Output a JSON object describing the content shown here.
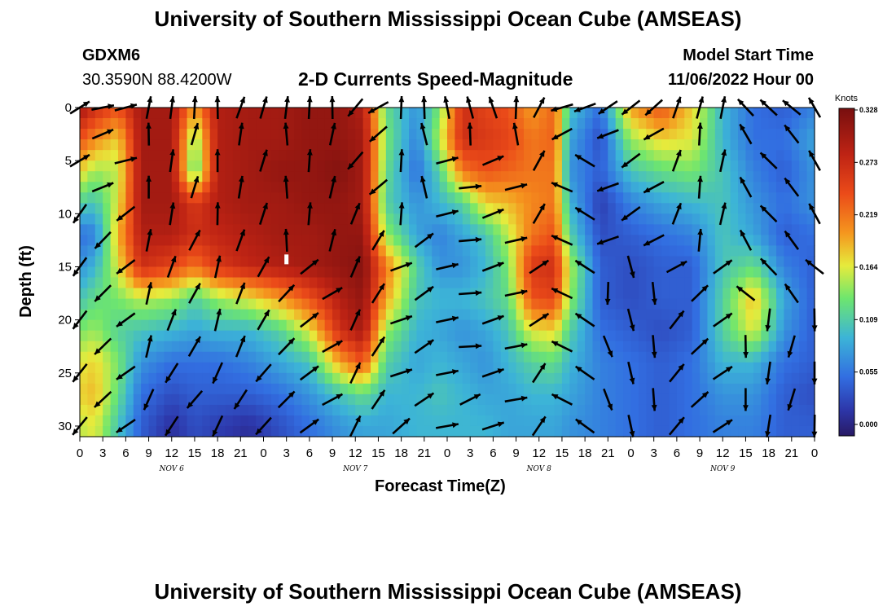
{
  "header": {
    "title": "University of Southern Mississippi Ocean Cube (AMSEAS)",
    "station_id": "GDXM6",
    "station_coords": "30.3590N  88.4200W",
    "subtitle": "2-D Currents Speed-Magnitude",
    "model_start_label": "Model Start Time",
    "model_start_value": "11/06/2022 Hour 00"
  },
  "footer": {
    "title": "University of Southern Mississippi Ocean Cube (AMSEAS)"
  },
  "chart_data": {
    "type": "heatmap",
    "xlabel": "Forecast Time(Z)",
    "ylabel": "Depth (ft)",
    "x_tick_labels": [
      "0",
      "3",
      "6",
      "9",
      "12",
      "15",
      "18",
      "21",
      "0",
      "3",
      "6",
      "9",
      "12",
      "15",
      "18",
      "21",
      "0",
      "3",
      "6",
      "9",
      "12",
      "15",
      "18",
      "21",
      "0",
      "3",
      "6",
      "9",
      "12",
      "15",
      "18",
      "21",
      "0"
    ],
    "x_range_hours": [
      0,
      96
    ],
    "day_labels": [
      {
        "label": "NOV 6",
        "hour": 12
      },
      {
        "label": "NOV 7",
        "hour": 36
      },
      {
        "label": "NOV 8",
        "hour": 60
      },
      {
        "label": "NOV 9",
        "hour": 84
      }
    ],
    "y_tick_labels": [
      "0",
      "5",
      "10",
      "15",
      "20",
      "25",
      "30"
    ],
    "y_ticks": [
      0,
      5,
      10,
      15,
      20,
      25,
      30
    ],
    "y_range": [
      0,
      31
    ],
    "colorbar": {
      "unit": "Knots",
      "tick_labels": [
        "0.328",
        "0.273",
        "0.219",
        "0.164",
        "0.109",
        "0.055",
        "0.000"
      ],
      "range": [
        0,
        0.328
      ]
    },
    "vector_depths": [
      0,
      2.5,
      5,
      7.5,
      10,
      12.5,
      15,
      17.5,
      20,
      22.5,
      25,
      27.5,
      30
    ],
    "speed_grid_hours": [
      0,
      2,
      5,
      8,
      12,
      15,
      18,
      22,
      26,
      30,
      34,
      37,
      40,
      44,
      47,
      50,
      53,
      56,
      59,
      62,
      64,
      68,
      72,
      76,
      80,
      84,
      88,
      92,
      96
    ],
    "speed_grid_depths": [
      0,
      3,
      6,
      9,
      12,
      15,
      18,
      21,
      24,
      27,
      30
    ],
    "speed": [
      [
        0.3,
        0.27,
        0.24,
        0.3,
        0.3,
        0.2,
        0.29,
        0.3,
        0.3,
        0.31,
        0.31,
        0.29,
        0.13,
        0.08,
        0.14,
        0.27,
        0.25,
        0.24,
        0.2,
        0.23,
        0.11,
        0.06,
        0.2,
        0.24,
        0.18,
        0.1,
        0.06,
        0.05,
        0.07
      ],
      [
        0.24,
        0.21,
        0.18,
        0.3,
        0.3,
        0.14,
        0.29,
        0.3,
        0.3,
        0.31,
        0.31,
        0.3,
        0.14,
        0.07,
        0.16,
        0.27,
        0.26,
        0.25,
        0.22,
        0.23,
        0.09,
        0.04,
        0.15,
        0.18,
        0.17,
        0.1,
        0.06,
        0.06,
        0.09
      ],
      [
        0.18,
        0.15,
        0.16,
        0.3,
        0.3,
        0.12,
        0.29,
        0.3,
        0.31,
        0.31,
        0.32,
        0.3,
        0.13,
        0.06,
        0.12,
        0.22,
        0.24,
        0.23,
        0.22,
        0.22,
        0.08,
        0.05,
        0.11,
        0.13,
        0.14,
        0.11,
        0.07,
        0.05,
        0.08
      ],
      [
        0.12,
        0.11,
        0.17,
        0.3,
        0.3,
        0.26,
        0.29,
        0.3,
        0.3,
        0.31,
        0.31,
        0.3,
        0.12,
        0.08,
        0.1,
        0.12,
        0.18,
        0.19,
        0.21,
        0.22,
        0.1,
        0.03,
        0.07,
        0.09,
        0.1,
        0.11,
        0.08,
        0.06,
        0.08
      ],
      [
        0.06,
        0.07,
        0.19,
        0.29,
        0.29,
        0.27,
        0.28,
        0.29,
        0.3,
        0.3,
        0.31,
        0.31,
        0.15,
        0.09,
        0.07,
        0.09,
        0.11,
        0.16,
        0.22,
        0.24,
        0.12,
        0.04,
        0.05,
        0.06,
        0.07,
        0.11,
        0.09,
        0.05,
        0.06
      ],
      [
        0.08,
        0.1,
        0.17,
        0.27,
        0.25,
        0.22,
        0.26,
        0.28,
        0.29,
        0.3,
        0.31,
        0.32,
        0.22,
        0.12,
        0.08,
        0.08,
        0.1,
        0.14,
        0.26,
        0.27,
        0.16,
        0.05,
        0.04,
        0.05,
        0.05,
        0.11,
        0.13,
        0.07,
        0.05
      ],
      [
        0.11,
        0.13,
        0.14,
        0.16,
        0.15,
        0.12,
        0.15,
        0.17,
        0.2,
        0.24,
        0.29,
        0.31,
        0.2,
        0.11,
        0.1,
        0.1,
        0.11,
        0.13,
        0.24,
        0.25,
        0.15,
        0.05,
        0.04,
        0.05,
        0.05,
        0.12,
        0.19,
        0.09,
        0.05
      ],
      [
        0.14,
        0.15,
        0.12,
        0.11,
        0.1,
        0.09,
        0.1,
        0.1,
        0.12,
        0.17,
        0.27,
        0.3,
        0.15,
        0.1,
        0.09,
        0.08,
        0.09,
        0.11,
        0.17,
        0.18,
        0.12,
        0.06,
        0.05,
        0.04,
        0.05,
        0.12,
        0.17,
        0.08,
        0.05
      ],
      [
        0.17,
        0.18,
        0.14,
        0.08,
        0.06,
        0.06,
        0.06,
        0.07,
        0.09,
        0.11,
        0.2,
        0.24,
        0.12,
        0.09,
        0.1,
        0.09,
        0.08,
        0.1,
        0.12,
        0.13,
        0.1,
        0.07,
        0.06,
        0.05,
        0.06,
        0.1,
        0.1,
        0.06,
        0.05
      ],
      [
        0.18,
        0.19,
        0.13,
        0.06,
        0.04,
        0.05,
        0.05,
        0.05,
        0.06,
        0.08,
        0.11,
        0.13,
        0.1,
        0.1,
        0.11,
        0.1,
        0.09,
        0.09,
        0.1,
        0.1,
        0.09,
        0.07,
        0.06,
        0.05,
        0.06,
        0.08,
        0.08,
        0.05,
        0.04
      ],
      [
        0.16,
        0.17,
        0.11,
        0.05,
        0.02,
        0.04,
        0.03,
        0.02,
        0.04,
        0.06,
        0.08,
        0.09,
        0.09,
        0.1,
        0.1,
        0.1,
        0.1,
        0.09,
        0.09,
        0.09,
        0.08,
        0.07,
        0.06,
        0.05,
        0.06,
        0.07,
        0.07,
        0.05,
        0.05
      ]
    ],
    "marker": {
      "hour": 27,
      "depth": 14.3
    }
  }
}
